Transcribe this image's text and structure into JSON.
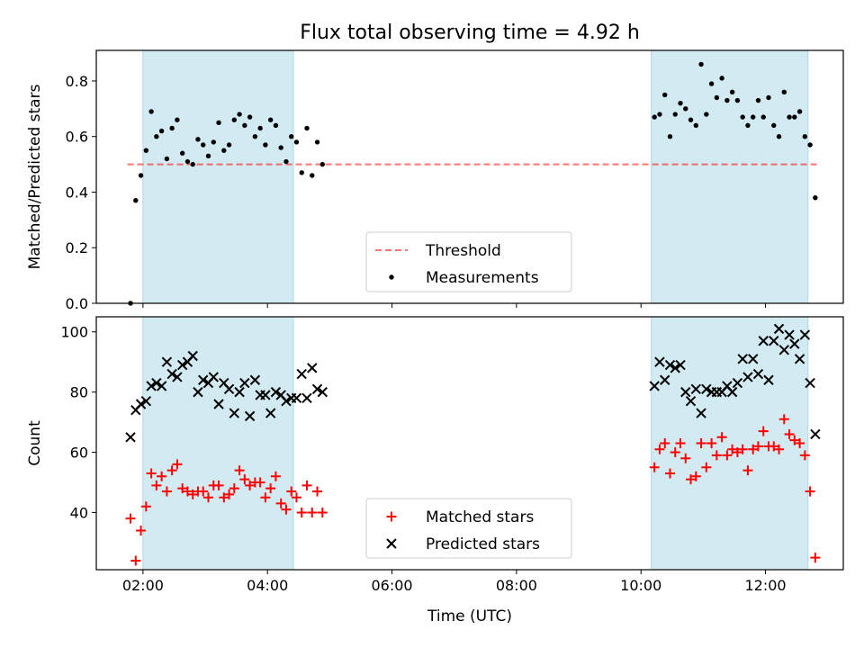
{
  "title": "Flux total observing time = 4.92 h",
  "colors": {
    "band": "#add8e6",
    "threshold": "#ff0000",
    "measurement": "#000000",
    "matched": "#ff0000",
    "predicted": "#000000"
  },
  "chart_data": [
    {
      "type": "scatter",
      "title": "Flux total observing time = 4.92 h",
      "xlabel": "",
      "ylabel": "Matched/Predicted stars",
      "xlim": [
        "01:15",
        "13:15"
      ],
      "ylim": [
        0,
        0.91
      ],
      "x_ticks": [
        "02:00",
        "04:00",
        "06:00",
        "08:00",
        "10:00",
        "12:00"
      ],
      "x_tick_labels": [
        "",
        "",
        "",
        "",
        "",
        ""
      ],
      "y_ticks": [
        0.0,
        0.2,
        0.4,
        0.6,
        0.8
      ],
      "y_tick_labels": [
        "0.0",
        "0.2",
        "0.4",
        "0.6",
        "0.8"
      ],
      "shaded_intervals": [
        [
          "02:00",
          "04:25"
        ],
        [
          "10:10",
          "12:41"
        ]
      ],
      "threshold": {
        "name": "Threshold",
        "value": 0.5,
        "x_range": [
          "01:45",
          "12:50"
        ]
      },
      "legend": {
        "position": "bottom-center",
        "entries": [
          "Threshold",
          "Measurements"
        ]
      },
      "series": [
        {
          "name": "Measurements",
          "marker": "dot",
          "points": [
            [
              "01:48",
              0.0
            ],
            [
              "01:53",
              0.37
            ],
            [
              "01:58",
              0.46
            ],
            [
              "02:03",
              0.55
            ],
            [
              "02:08",
              0.69
            ],
            [
              "02:13",
              0.6
            ],
            [
              "02:18",
              0.62
            ],
            [
              "02:23",
              0.52
            ],
            [
              "02:28",
              0.63
            ],
            [
              "02:33",
              0.66
            ],
            [
              "02:38",
              0.54
            ],
            [
              "02:43",
              0.51
            ],
            [
              "02:48",
              0.5
            ],
            [
              "02:53",
              0.59
            ],
            [
              "02:58",
              0.57
            ],
            [
              "03:03",
              0.53
            ],
            [
              "03:08",
              0.58
            ],
            [
              "03:13",
              0.65
            ],
            [
              "03:18",
              0.55
            ],
            [
              "03:23",
              0.57
            ],
            [
              "03:28",
              0.66
            ],
            [
              "03:33",
              0.68
            ],
            [
              "03:38",
              0.64
            ],
            [
              "03:43",
              0.67
            ],
            [
              "03:48",
              0.6
            ],
            [
              "03:53",
              0.63
            ],
            [
              "03:58",
              0.57
            ],
            [
              "04:03",
              0.66
            ],
            [
              "04:08",
              0.64
            ],
            [
              "04:13",
              0.56
            ],
            [
              "04:18",
              0.51
            ],
            [
              "04:23",
              0.6
            ],
            [
              "04:28",
              0.58
            ],
            [
              "04:33",
              0.47
            ],
            [
              "04:38",
              0.63
            ],
            [
              "04:43",
              0.46
            ],
            [
              "04:48",
              0.58
            ],
            [
              "04:53",
              0.5
            ],
            [
              "10:13",
              0.67
            ],
            [
              "10:18",
              0.68
            ],
            [
              "10:23",
              0.75
            ],
            [
              "10:28",
              0.6
            ],
            [
              "10:33",
              0.68
            ],
            [
              "10:38",
              0.72
            ],
            [
              "10:43",
              0.7
            ],
            [
              "10:48",
              0.66
            ],
            [
              "10:53",
              0.64
            ],
            [
              "10:58",
              0.86
            ],
            [
              "11:03",
              0.68
            ],
            [
              "11:08",
              0.79
            ],
            [
              "11:13",
              0.74
            ],
            [
              "11:18",
              0.81
            ],
            [
              "11:23",
              0.73
            ],
            [
              "11:28",
              0.76
            ],
            [
              "11:33",
              0.73
            ],
            [
              "11:38",
              0.67
            ],
            [
              "11:43",
              0.64
            ],
            [
              "11:48",
              0.67
            ],
            [
              "11:53",
              0.73
            ],
            [
              "11:58",
              0.67
            ],
            [
              "12:03",
              0.74
            ],
            [
              "12:08",
              0.64
            ],
            [
              "12:13",
              0.6
            ],
            [
              "12:18",
              0.76
            ],
            [
              "12:23",
              0.67
            ],
            [
              "12:28",
              0.67
            ],
            [
              "12:33",
              0.69
            ],
            [
              "12:38",
              0.6
            ],
            [
              "12:43",
              0.57
            ],
            [
              "12:48",
              0.38
            ]
          ]
        }
      ]
    },
    {
      "type": "scatter",
      "xlabel": "Time (UTC)",
      "ylabel": "Count",
      "xlim": [
        "01:15",
        "13:15"
      ],
      "ylim": [
        21,
        105
      ],
      "x_ticks": [
        "02:00",
        "04:00",
        "06:00",
        "08:00",
        "10:00",
        "12:00"
      ],
      "x_tick_labels": [
        "02:00",
        "04:00",
        "06:00",
        "08:00",
        "10:00",
        "12:00"
      ],
      "y_ticks": [
        40,
        60,
        80,
        100
      ],
      "y_tick_labels": [
        "40",
        "60",
        "80",
        "100"
      ],
      "shaded_intervals": [
        [
          "02:00",
          "04:25"
        ],
        [
          "10:10",
          "12:41"
        ]
      ],
      "legend": {
        "position": "bottom-center",
        "entries": [
          "Matched stars",
          "Predicted stars"
        ]
      },
      "series": [
        {
          "name": "Matched stars",
          "marker": "plus",
          "points": [
            [
              "01:48",
              38
            ],
            [
              "01:53",
              24
            ],
            [
              "01:58",
              34
            ],
            [
              "02:03",
              42
            ],
            [
              "02:08",
              53
            ],
            [
              "02:13",
              49
            ],
            [
              "02:18",
              52
            ],
            [
              "02:23",
              47
            ],
            [
              "02:28",
              54
            ],
            [
              "02:33",
              56
            ],
            [
              "02:38",
              48
            ],
            [
              "02:43",
              47
            ],
            [
              "02:48",
              46
            ],
            [
              "02:53",
              47
            ],
            [
              "02:58",
              47
            ],
            [
              "03:03",
              45
            ],
            [
              "03:08",
              49
            ],
            [
              "03:13",
              49
            ],
            [
              "03:18",
              45
            ],
            [
              "03:23",
              46
            ],
            [
              "03:28",
              48
            ],
            [
              "03:33",
              54
            ],
            [
              "03:38",
              51
            ],
            [
              "03:43",
              49
            ],
            [
              "03:48",
              50
            ],
            [
              "03:53",
              50
            ],
            [
              "03:58",
              45
            ],
            [
              "04:03",
              48
            ],
            [
              "04:08",
              52
            ],
            [
              "04:13",
              43
            ],
            [
              "04:18",
              41
            ],
            [
              "04:23",
              47
            ],
            [
              "04:28",
              45
            ],
            [
              "04:33",
              40
            ],
            [
              "04:38",
              49
            ],
            [
              "04:43",
              40
            ],
            [
              "04:48",
              47
            ],
            [
              "04:53",
              40
            ],
            [
              "10:13",
              55
            ],
            [
              "10:18",
              61
            ],
            [
              "10:23",
              63
            ],
            [
              "10:28",
              53
            ],
            [
              "10:33",
              60
            ],
            [
              "10:38",
              63
            ],
            [
              "10:43",
              58
            ],
            [
              "10:48",
              51
            ],
            [
              "10:53",
              52
            ],
            [
              "10:58",
              63
            ],
            [
              "11:03",
              55
            ],
            [
              "11:08",
              63
            ],
            [
              "11:13",
              59
            ],
            [
              "11:18",
              65
            ],
            [
              "11:23",
              59
            ],
            [
              "11:28",
              61
            ],
            [
              "11:33",
              60
            ],
            [
              "11:38",
              61
            ],
            [
              "11:43",
              54
            ],
            [
              "11:48",
              61
            ],
            [
              "11:53",
              62
            ],
            [
              "11:58",
              67
            ],
            [
              "12:03",
              62
            ],
            [
              "12:08",
              62
            ],
            [
              "12:13",
              61
            ],
            [
              "12:18",
              71
            ],
            [
              "12:23",
              66
            ],
            [
              "12:28",
              64
            ],
            [
              "12:33",
              63
            ],
            [
              "12:38",
              59
            ],
            [
              "12:43",
              47
            ],
            [
              "12:48",
              25
            ]
          ]
        },
        {
          "name": "Predicted stars",
          "marker": "x",
          "points": [
            [
              "01:48",
              65
            ],
            [
              "01:53",
              74
            ],
            [
              "01:58",
              76
            ],
            [
              "02:03",
              77
            ],
            [
              "02:08",
              82
            ],
            [
              "02:13",
              83
            ],
            [
              "02:18",
              82
            ],
            [
              "02:23",
              90
            ],
            [
              "02:28",
              86
            ],
            [
              "02:33",
              85
            ],
            [
              "02:38",
              89
            ],
            [
              "02:43",
              90
            ],
            [
              "02:48",
              92
            ],
            [
              "02:53",
              80
            ],
            [
              "02:58",
              84
            ],
            [
              "03:03",
              83
            ],
            [
              "03:08",
              85
            ],
            [
              "03:13",
              76
            ],
            [
              "03:18",
              83
            ],
            [
              "03:23",
              81
            ],
            [
              "03:28",
              73
            ],
            [
              "03:33",
              80
            ],
            [
              "03:38",
              83
            ],
            [
              "03:43",
              72
            ],
            [
              "03:48",
              84
            ],
            [
              "03:53",
              79
            ],
            [
              "03:58",
              79
            ],
            [
              "04:03",
              73
            ],
            [
              "04:08",
              80
            ],
            [
              "04:13",
              79
            ],
            [
              "04:18",
              77
            ],
            [
              "04:23",
              78
            ],
            [
              "04:28",
              78
            ],
            [
              "04:33",
              86
            ],
            [
              "04:38",
              78
            ],
            [
              "04:43",
              88
            ],
            [
              "04:48",
              81
            ],
            [
              "04:53",
              80
            ],
            [
              "10:13",
              82
            ],
            [
              "10:18",
              90
            ],
            [
              "10:23",
              84
            ],
            [
              "10:28",
              89
            ],
            [
              "10:33",
              88
            ],
            [
              "10:38",
              89
            ],
            [
              "10:43",
              80
            ],
            [
              "10:48",
              77
            ],
            [
              "10:53",
              81
            ],
            [
              "10:58",
              73
            ],
            [
              "11:03",
              81
            ],
            [
              "11:08",
              80
            ],
            [
              "11:13",
              80
            ],
            [
              "11:18",
              80
            ],
            [
              "11:23",
              82
            ],
            [
              "11:28",
              80
            ],
            [
              "11:33",
              83
            ],
            [
              "11:38",
              91
            ],
            [
              "11:43",
              85
            ],
            [
              "11:48",
              91
            ],
            [
              "11:53",
              86
            ],
            [
              "11:58",
              97
            ],
            [
              "12:03",
              84
            ],
            [
              "12:08",
              97
            ],
            [
              "12:13",
              101
            ],
            [
              "12:18",
              94
            ],
            [
              "12:23",
              99
            ],
            [
              "12:28",
              96
            ],
            [
              "12:33",
              91
            ],
            [
              "12:38",
              99
            ],
            [
              "12:43",
              83
            ],
            [
              "12:48",
              66
            ]
          ]
        }
      ]
    }
  ]
}
